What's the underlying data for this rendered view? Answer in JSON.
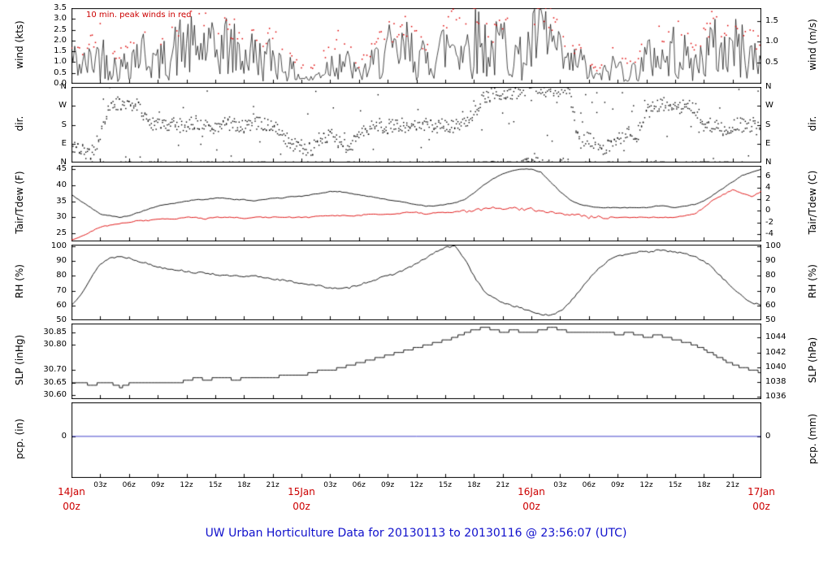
{
  "title": "UW Urban Horticulture Data for 20130113  to  20130116 @ 23:56:07  (UTC)",
  "colors": {
    "black": "#000000",
    "series_red": "#dd0000",
    "annotation_red": "#cc0000",
    "day_label_red": "#cc0000",
    "title_blue": "#1010cc",
    "pcp_blue": "#4444cc"
  },
  "x_axis": {
    "start_label": "14Jan 00z",
    "end_label": "17Jan 00z",
    "hours_total": 72,
    "tick_interval_hours": 3,
    "hour_labels": [
      "03z",
      "06z",
      "09z",
      "12z",
      "15z",
      "18z",
      "21z"
    ],
    "day_labels": [
      {
        "t": 0,
        "date": "14Jan",
        "time": "00z"
      },
      {
        "t": 24,
        "date": "15Jan",
        "time": "00z"
      },
      {
        "t": 48,
        "date": "16Jan",
        "time": "00z"
      },
      {
        "t": 72,
        "date": "17Jan",
        "time": "00z"
      }
    ]
  },
  "chart_data": [
    {
      "id": "wind",
      "type": "line",
      "ylabel_left": "wind (kts)",
      "ylabel_right": "wind (m/s)",
      "ylim": [
        0,
        3.5
      ],
      "annotation": "10 min. peak winds in red",
      "yticks_left": {
        "values": [
          0,
          0.5,
          1,
          1.5,
          2,
          2.5,
          3,
          3.5
        ],
        "labels": [
          "0.0",
          "0.5",
          "1.0",
          "1.5",
          "2.0",
          "2.5",
          "3.0",
          "3.5"
        ]
      },
      "yticks_right": {
        "unit": "m/s",
        "values": [
          0.5,
          1.0,
          1.5
        ],
        "labels": [
          "0.5",
          "1.0",
          "1.5"
        ]
      },
      "series": [
        {
          "name": "wind_mean_kts",
          "color": "#000000",
          "values_hourly": [
            1.2,
            0.8,
            1.0,
            1.4,
            1.0,
            0.6,
            1.2,
            1.5,
            1.3,
            0.9,
            1.2,
            1.6,
            1.8,
            1.5,
            1.7,
            1.4,
            1.8,
            1.5,
            1.2,
            1.4,
            1.0,
            1.3,
            0.9,
            0.6,
            0.3,
            0.2,
            0.5,
            0.9,
            1.2,
            0.8,
            0.4,
            0.7,
            1.1,
            1.5,
            1.2,
            1.6,
            1.3,
            1.0,
            1.4,
            1.7,
            2.0,
            1.6,
            2.2,
            1.8,
            1.4,
            1.9,
            1.5,
            1.1,
            1.7,
            2.4,
            1.9,
            1.2,
            0.8,
            1.1,
            0.5,
            0.3,
            0.6,
            0.9,
            0.4,
            0.7,
            1.1,
            1.4,
            1.0,
            1.6,
            1.2,
            0.8,
            1.3,
            1.7,
            1.4,
            1.8,
            1.5,
            1.2,
            1.0
          ]
        },
        {
          "name": "wind_peak_kts_10min",
          "color": "#dd0000",
          "values_hourly": [
            2.0,
            1.5,
            1.8,
            2.3,
            1.8,
            1.2,
            2.1,
            2.5,
            2.2,
            1.6,
            2.1,
            2.7,
            2.9,
            2.5,
            2.8,
            2.4,
            2.9,
            2.5,
            2.1,
            2.4,
            1.8,
            2.2,
            1.6,
            1.2,
            0.8,
            0.6,
            1.1,
            1.7,
            2.1,
            1.5,
            0.9,
            1.4,
            2.0,
            2.5,
            2.1,
            2.7,
            2.3,
            1.8,
            2.4,
            2.8,
            3.1,
            2.7,
            3.3,
            2.9,
            2.4,
            3.0,
            2.5,
            2.0,
            2.8,
            3.4,
            3.0,
            2.1,
            1.5,
            1.9,
            1.0,
            0.7,
            1.2,
            1.6,
            0.9,
            1.3,
            2.0,
            2.4,
            1.8,
            2.7,
            2.1,
            1.5,
            2.2,
            2.8,
            2.4,
            2.9,
            2.5,
            2.1,
            1.8
          ]
        }
      ]
    },
    {
      "id": "dir",
      "type": "scatter",
      "ylabel_left": "dir.",
      "ylabel_right": "dir.",
      "ylim": [
        0,
        360
      ],
      "yticks_left": {
        "values": [
          0,
          90,
          180,
          270,
          360
        ],
        "labels": [
          "N",
          "E",
          "S",
          "W",
          "N"
        ]
      },
      "yticks_right": {
        "unit": "compass",
        "values": [
          0,
          90,
          180,
          270,
          360
        ],
        "labels": [
          "N",
          "E",
          "S",
          "W",
          "N"
        ]
      },
      "series": [
        {
          "name": "wind_dir_deg",
          "color": "#000000",
          "values_hourly": [
            90,
            60,
            45,
            120,
            270,
            280,
            265,
            270,
            200,
            180,
            185,
            175,
            180,
            190,
            180,
            170,
            180,
            185,
            175,
            180,
            190,
            180,
            120,
            90,
            80,
            60,
            100,
            140,
            90,
            70,
            120,
            160,
            180,
            170,
            175,
            180,
            185,
            175,
            170,
            180,
            175,
            185,
            230,
            300,
            340,
            330,
            320,
            350,
            355,
            350,
            345,
            350,
            340,
            90,
            120,
            60,
            80,
            100,
            140,
            120,
            260,
            270,
            280,
            270,
            265,
            270,
            180,
            170,
            160,
            175,
            180,
            170,
            165
          ]
        }
      ]
    },
    {
      "id": "temp",
      "type": "line",
      "ylabel_left": "Tair/Tdew (F)",
      "ylabel_right": "Tair/Tdew (C)",
      "ylim": [
        22.5,
        46
      ],
      "yticks_left": {
        "values": [
          25,
          30,
          35,
          40,
          45
        ],
        "labels": [
          "25",
          "30",
          "35",
          "40",
          "45"
        ]
      },
      "yticks_right": {
        "unit": "C",
        "values": [
          -4,
          -2,
          0,
          2,
          4,
          6
        ],
        "labels": [
          "-4",
          "-2",
          "0",
          "2",
          "4",
          "6"
        ]
      },
      "series": [
        {
          "name": "tair_f",
          "color": "#000000",
          "values_hourly": [
            37,
            35,
            33,
            31,
            30.5,
            30,
            30.5,
            31.5,
            32.5,
            33.5,
            34,
            34.5,
            35,
            35.5,
            35.5,
            36,
            36,
            35.5,
            35.5,
            35,
            35.5,
            36,
            36,
            36.5,
            36.5,
            37,
            37.5,
            38,
            38,
            37.5,
            37,
            36.5,
            36,
            35.5,
            35,
            34.5,
            34,
            33.5,
            33.5,
            34,
            34.5,
            35.5,
            37.5,
            40,
            42,
            43.5,
            44.5,
            45,
            45,
            44,
            41,
            38,
            35.5,
            34,
            33.5,
            33,
            33,
            33,
            33,
            33,
            33,
            33.5,
            33.5,
            33,
            33.5,
            34,
            35,
            37,
            39,
            41,
            43,
            44,
            45
          ]
        },
        {
          "name": "tdew_f",
          "color": "#dd0000",
          "values_hourly": [
            23,
            24,
            25.5,
            27,
            27.5,
            28,
            28.5,
            29,
            29,
            29.5,
            29.5,
            29.5,
            30,
            30,
            29.5,
            30,
            30,
            30,
            29.5,
            30,
            30,
            30,
            30,
            30,
            30,
            30,
            30.5,
            30.5,
            30.5,
            30.5,
            30.5,
            31,
            31,
            31,
            31,
            31.5,
            31.5,
            31,
            31.5,
            31.5,
            31.5,
            32,
            32,
            32.5,
            33,
            32.5,
            33,
            32.5,
            32.5,
            32,
            31.5,
            31,
            30.5,
            30.5,
            30,
            30,
            30,
            30,
            30,
            30,
            30,
            30,
            30,
            30,
            30.5,
            31,
            33,
            35.5,
            37,
            38.5,
            37.5,
            36.5,
            38
          ]
        }
      ]
    },
    {
      "id": "rh",
      "type": "line",
      "ylabel_left": "RH (%)",
      "ylabel_right": "RH (%)",
      "ylim": [
        50,
        101
      ],
      "yticks_left": {
        "values": [
          50,
          60,
          70,
          80,
          90,
          100
        ],
        "labels": [
          "50",
          "60",
          "70",
          "80",
          "90",
          "100"
        ]
      },
      "yticks_right": {
        "unit": "%",
        "values": [
          50,
          60,
          70,
          80,
          90,
          100
        ],
        "labels": [
          "50",
          "60",
          "70",
          "80",
          "90",
          "100"
        ]
      },
      "series": [
        {
          "name": "rh_pct",
          "color": "#000000",
          "values_hourly": [
            60,
            68,
            78,
            88,
            92,
            93,
            92,
            90,
            88,
            86,
            85,
            84,
            83,
            82,
            82,
            81,
            80,
            80,
            79,
            80,
            79,
            78,
            77,
            76,
            75,
            74,
            73,
            72,
            71,
            72,
            74,
            76,
            78,
            80,
            82,
            85,
            88,
            92,
            96,
            99,
            100,
            92,
            80,
            70,
            65,
            62,
            60,
            58,
            56,
            54,
            53,
            56,
            62,
            70,
            78,
            85,
            90,
            93,
            95,
            96,
            96,
            97,
            97,
            96,
            95,
            93,
            90,
            85,
            78,
            72,
            66,
            62,
            60
          ]
        }
      ]
    },
    {
      "id": "slp",
      "type": "step",
      "ylabel_left": "SLP (inHg)",
      "ylabel_right": "SLP (hPa)",
      "ylim": [
        30.585,
        30.885
      ],
      "yticks_left": {
        "values": [
          30.6,
          30.65,
          30.7,
          30.8,
          30.85
        ],
        "labels": [
          "30.60",
          "30.65",
          "30.70",
          "30.80",
          "30.85"
        ]
      },
      "yticks_right": {
        "unit": "hPa",
        "values": [
          1036,
          1038,
          1040,
          1042,
          1044
        ],
        "labels": [
          "1036",
          "1038",
          "1040",
          "1042",
          "1044"
        ]
      },
      "series": [
        {
          "name": "slp_inhg",
          "color": "#000000",
          "values_hourly": [
            30.65,
            30.65,
            30.64,
            30.65,
            30.65,
            30.63,
            30.65,
            30.65,
            30.65,
            30.65,
            30.65,
            30.65,
            30.66,
            30.67,
            30.66,
            30.67,
            30.67,
            30.66,
            30.67,
            30.67,
            30.67,
            30.67,
            30.68,
            30.68,
            30.68,
            30.69,
            30.7,
            30.7,
            30.71,
            30.72,
            30.73,
            30.74,
            30.75,
            30.76,
            30.77,
            30.78,
            30.79,
            30.8,
            30.81,
            30.82,
            30.83,
            30.85,
            30.86,
            30.87,
            30.86,
            30.85,
            30.86,
            30.85,
            30.85,
            30.86,
            30.87,
            30.86,
            30.85,
            30.85,
            30.85,
            30.85,
            30.85,
            30.84,
            30.85,
            30.84,
            30.83,
            30.84,
            30.83,
            30.82,
            30.81,
            30.8,
            30.78,
            30.76,
            30.74,
            30.72,
            30.71,
            30.7,
            30.69
          ]
        }
      ]
    },
    {
      "id": "pcp",
      "type": "line",
      "ylabel_left": "pcp. (in)",
      "ylabel_right": "pcp. (mm)",
      "ylim": [
        -0.55,
        0.45
      ],
      "yticks_left": {
        "values": [
          0
        ],
        "labels": [
          "0"
        ]
      },
      "yticks_right": {
        "unit": "mm",
        "values": [
          0
        ],
        "labels": [
          "0"
        ]
      },
      "series": [
        {
          "name": "precip_in",
          "color": "#4444cc",
          "constant": 0
        }
      ]
    }
  ]
}
